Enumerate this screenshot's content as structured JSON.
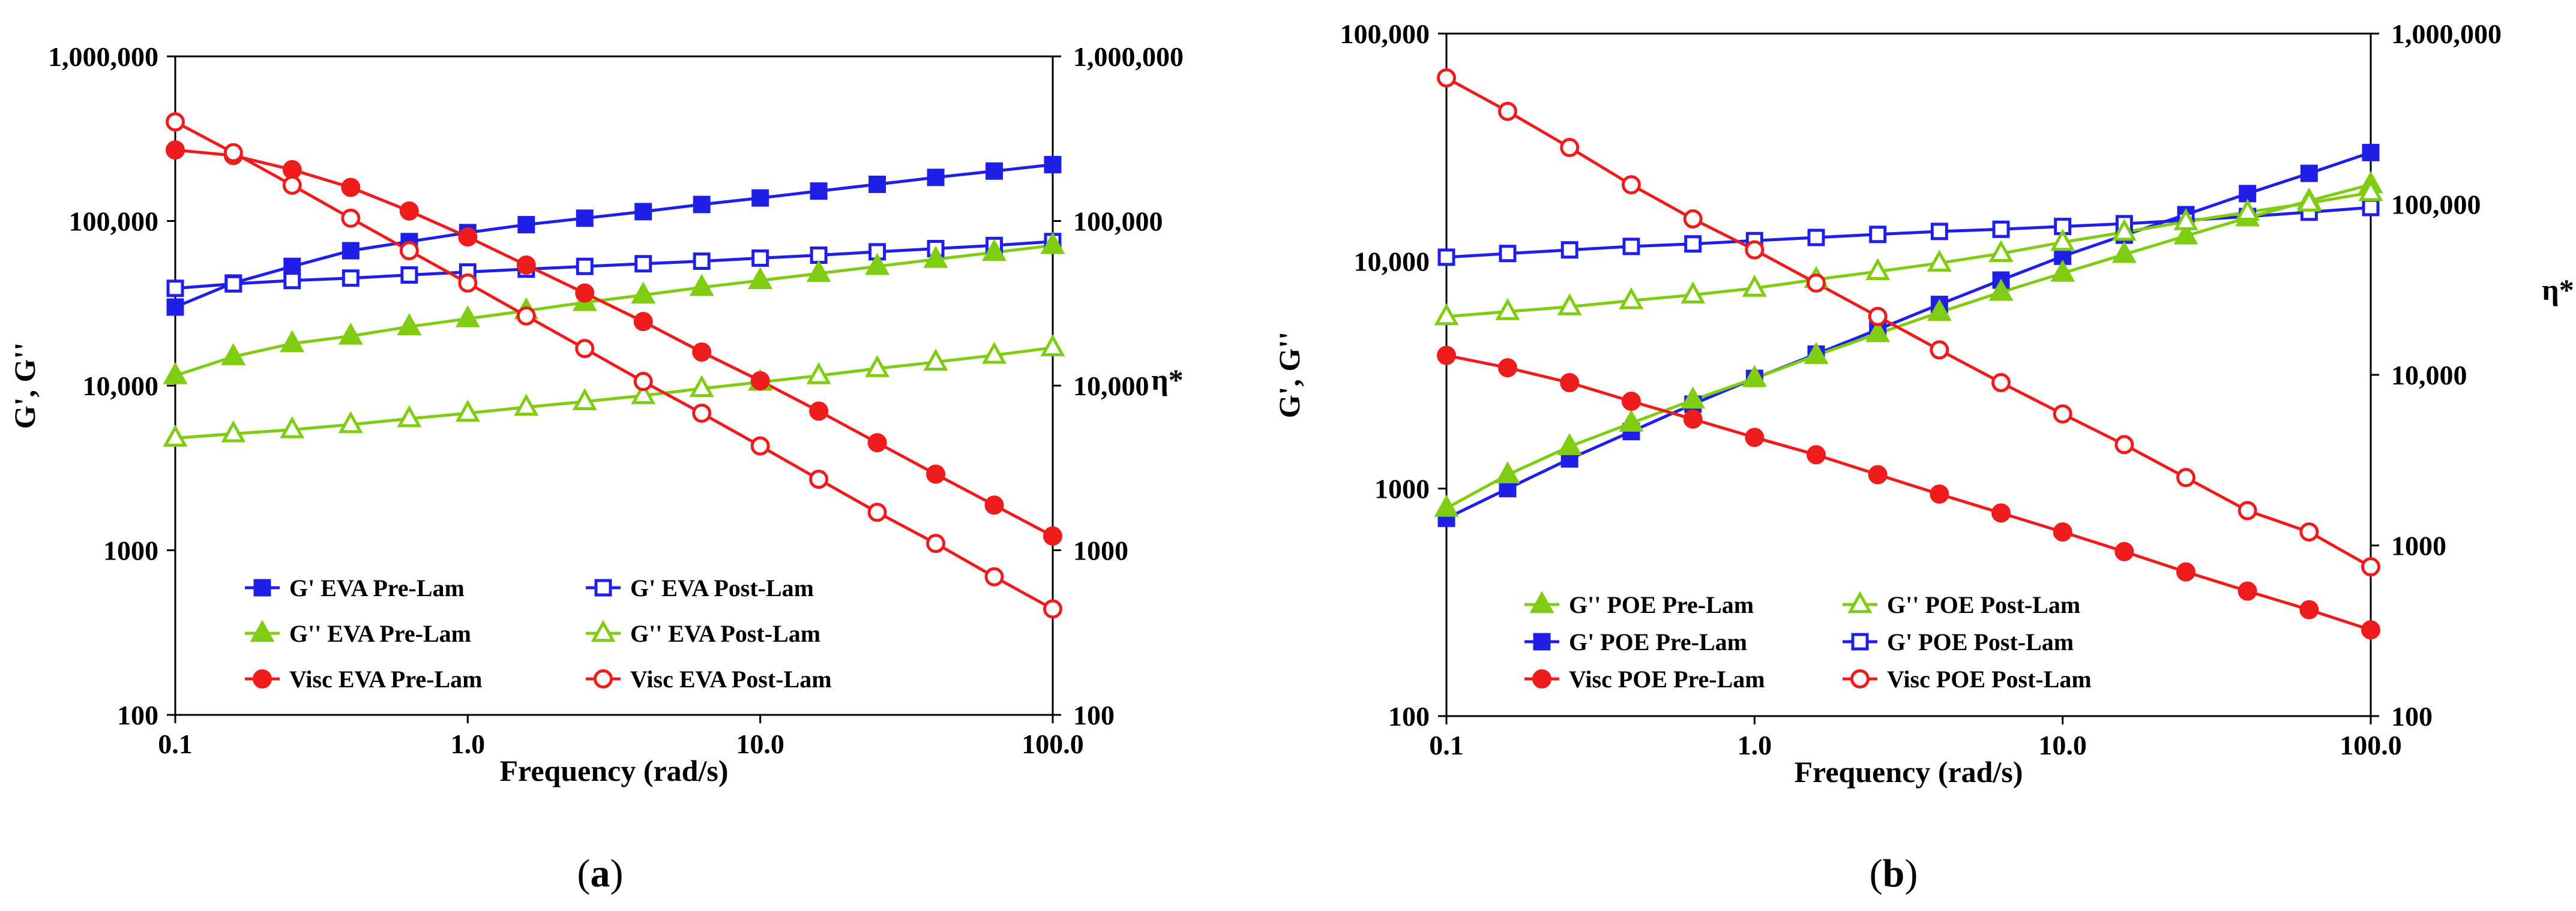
{
  "figure": {
    "panel_labels": [
      {
        "open": "(",
        "letter": "a",
        "close": ")"
      },
      {
        "open": "(",
        "letter": "b",
        "close": ")"
      }
    ]
  },
  "chart_data": [
    {
      "type": "line",
      "id": "a",
      "xscale": "log",
      "xlabel": "Frequency (rad/s)",
      "ylabel": "G', G''",
      "y2label": "η*",
      "xlim": [
        0.1,
        100
      ],
      "ylim": [
        100,
        1000000
      ],
      "y2lim": [
        100,
        1000000
      ],
      "xticks": [
        "0.1",
        "1.0",
        "10.0",
        "100.0"
      ],
      "yticks": [
        "100",
        "1000",
        "10,000",
        "100,000",
        "1,000,000"
      ],
      "y2ticks": [
        "100",
        "1000",
        "10,000",
        "100,000",
        "1,000,000"
      ],
      "x": [
        0.1,
        0.158,
        0.251,
        0.398,
        0.631,
        1.0,
        1.585,
        2.512,
        3.981,
        6.31,
        10.0,
        15.85,
        25.12,
        39.81,
        63.1,
        100.0
      ],
      "legend_position": "bottom-inside",
      "series": [
        {
          "name": "G' EVA Pre-Lam",
          "color": "#1f1fe6",
          "marker": "square",
          "filled": true,
          "axis": "left",
          "values": [
            30000,
            42000,
            53000,
            66000,
            75000,
            85000,
            95000,
            104000,
            114000,
            126000,
            138000,
            152000,
            167000,
            184000,
            201000,
            220000
          ]
        },
        {
          "name": "G' EVA Post-Lam",
          "color": "#1f1fe6",
          "marker": "square",
          "filled": false,
          "axis": "left",
          "values": [
            39000,
            41500,
            43500,
            45000,
            47000,
            49000,
            51000,
            53000,
            55000,
            57000,
            59500,
            62000,
            65000,
            68000,
            71000,
            75000
          ]
        },
        {
          "name": "G'' EVA Pre-Lam",
          "color": "#7fcc12",
          "marker": "triangle",
          "filled": true,
          "axis": "left",
          "values": [
            11500,
            15000,
            18000,
            20000,
            22800,
            25500,
            28500,
            32000,
            35500,
            39500,
            43500,
            48000,
            53000,
            58500,
            64500,
            71000
          ]
        },
        {
          "name": "G'' EVA Post-Lam",
          "color": "#7fcc12",
          "marker": "triangle",
          "filled": false,
          "axis": "left",
          "values": [
            4800,
            5100,
            5400,
            5800,
            6300,
            6800,
            7400,
            8000,
            8700,
            9600,
            10500,
            11500,
            12700,
            13900,
            15300,
            17000
          ]
        },
        {
          "name": "Visc EVA Pre-Lam",
          "color": "#ee1c1c",
          "marker": "circle",
          "filled": true,
          "axis": "right",
          "values": [
            270000,
            250000,
            205000,
            160000,
            115000,
            80000,
            54000,
            36500,
            24500,
            16000,
            10700,
            7000,
            4500,
            2900,
            1880,
            1220
          ]
        },
        {
          "name": "Visc EVA Post-Lam",
          "color": "#ee1c1c",
          "marker": "circle",
          "filled": false,
          "axis": "right",
          "values": [
            400000,
            260000,
            165000,
            104000,
            66000,
            42000,
            26500,
            16800,
            10600,
            6800,
            4300,
            2700,
            1700,
            1100,
            690,
            440
          ]
        }
      ],
      "legend_order": [
        0,
        1,
        2,
        3,
        4,
        5
      ]
    },
    {
      "type": "line",
      "id": "b",
      "xscale": "log",
      "xlabel": "Frequency (rad/s)",
      "ylabel": "G', G''",
      "y2label": "η*",
      "xlim": [
        0.1,
        100
      ],
      "ylim": [
        100,
        100000
      ],
      "y2lim": [
        100,
        1000000
      ],
      "xticks": [
        "0.1",
        "1.0",
        "10.0",
        "100.0"
      ],
      "yticks": [
        "100",
        "1000",
        "10,000",
        "100,000"
      ],
      "y2ticks": [
        "100",
        "1000",
        "10,000",
        "100,000",
        "1,000,000"
      ],
      "x": [
        0.1,
        0.158,
        0.251,
        0.398,
        0.631,
        1.0,
        1.585,
        2.512,
        3.981,
        6.31,
        10.0,
        15.85,
        25.12,
        39.81,
        63.1,
        100.0
      ],
      "legend_position": "bottom-inside",
      "series": [
        {
          "name": "G' POE Pre-Lam",
          "color": "#1f1fe6",
          "marker": "square",
          "filled": true,
          "axis": "left",
          "values": [
            740,
            1000,
            1350,
            1780,
            2350,
            3050,
            3900,
            5000,
            6450,
            8250,
            10500,
            13000,
            16000,
            19800,
            24300,
            30000
          ]
        },
        {
          "name": "G' POE Post-Lam",
          "color": "#1f1fe6",
          "marker": "square",
          "filled": false,
          "axis": "left",
          "values": [
            10400,
            10800,
            11200,
            11600,
            11900,
            12300,
            12700,
            13100,
            13500,
            13800,
            14200,
            14600,
            15100,
            15700,
            16400,
            17200
          ]
        },
        {
          "name": "G'' POE Pre-Lam",
          "color": "#7fcc12",
          "marker": "triangle",
          "filled": true,
          "axis": "left",
          "values": [
            820,
            1150,
            1530,
            1940,
            2450,
            3050,
            3850,
            4800,
            5950,
            7300,
            8850,
            10700,
            12900,
            15500,
            18400,
            21700
          ]
        },
        {
          "name": "G'' POE Post-Lam",
          "color": "#7fcc12",
          "marker": "triangle",
          "filled": false,
          "axis": "left",
          "values": [
            5700,
            6000,
            6300,
            6700,
            7100,
            7600,
            8300,
            9000,
            9800,
            10800,
            12100,
            13400,
            14900,
            16400,
            18000,
            20000
          ]
        },
        {
          "name": "Visc POE Pre-Lam",
          "color": "#ee1c1c",
          "marker": "circle",
          "filled": true,
          "axis": "right",
          "values": [
            13000,
            11000,
            9000,
            7000,
            5500,
            4300,
            3400,
            2600,
            2000,
            1550,
            1200,
            920,
            700,
            540,
            420,
            320
          ]
        },
        {
          "name": "Visc POE Post-Lam",
          "color": "#ee1c1c",
          "marker": "circle",
          "filled": false,
          "axis": "right",
          "values": [
            550000,
            350000,
            215000,
            130000,
            82000,
            54000,
            34500,
            22000,
            14000,
            9000,
            5900,
            3900,
            2500,
            1600,
            1200,
            750
          ]
        }
      ],
      "legend_order": [
        2,
        3,
        0,
        1,
        4,
        5
      ]
    }
  ]
}
